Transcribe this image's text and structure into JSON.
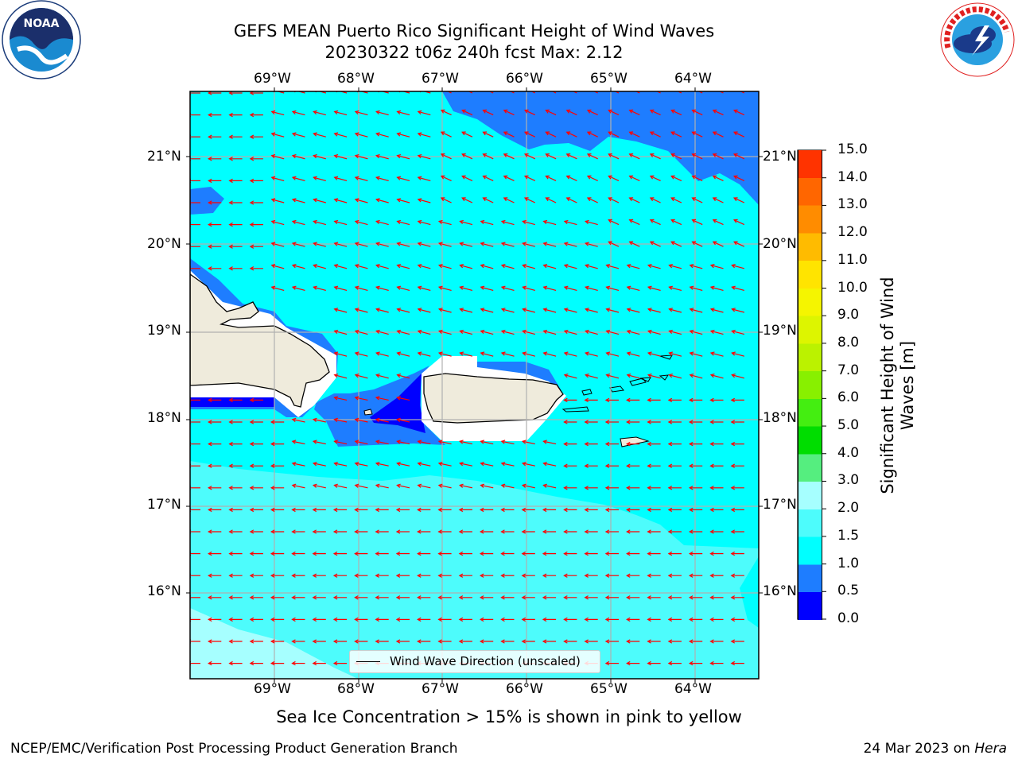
{
  "title": {
    "line1": "GEFS MEAN Puerto Rico Significant Height of Wind Waves",
    "line2": "20230322 t06z 240h fcst   Max: 2.12"
  },
  "map": {
    "lon_labels": [
      "69°W",
      "68°W",
      "67°W",
      "66°W",
      "65°W",
      "64°W"
    ],
    "lat_labels": [
      "21°N",
      "20°N",
      "19°N",
      "18°N",
      "17°N",
      "16°N"
    ],
    "legend_label": "Wind Wave Direction (unscaled)",
    "arrow_color": "#ff0000",
    "ocean_colors": {
      "low": "#0000ff",
      "mid": "#1e7dff",
      "main": "#00ffff",
      "light": "#4dfcfc",
      "pale": "#a6ffff"
    },
    "land_color": "#efebdc"
  },
  "colorbar": {
    "title": "Significant Height of Wind Waves [m]",
    "ticks": [
      "15.0",
      "14.0",
      "13.0",
      "12.0",
      "11.0",
      "10.0",
      "9.0",
      "8.0",
      "7.0",
      "6.0",
      "5.0",
      "4.0",
      "3.0",
      "2.0",
      "1.5",
      "1.0",
      "0.5",
      "0.0"
    ],
    "colors": [
      "#0000ff",
      "#1e7dff",
      "#00ffff",
      "#4dfcfc",
      "#a6ffff",
      "#55ee7f",
      "#00dd00",
      "#44ee11",
      "#88f000",
      "#bbf200",
      "#ddf500",
      "#f5f500",
      "#ffe400",
      "#ffbb00",
      "#ff8c00",
      "#ff6600",
      "#ff3300",
      "#ff0000"
    ]
  },
  "footer_note": "Sea Ice Concentration > 15% is shown in pink to yellow",
  "credits": {
    "left": "NCEP/EMC/Verification Post Processing Product Generation Branch",
    "right_prefix": "24 Mar 2023 on ",
    "right_host": "Hera"
  },
  "logos": {
    "noaa_text": "NOAA",
    "nws_text": "NATIONAL WEATHER SERVICE"
  }
}
